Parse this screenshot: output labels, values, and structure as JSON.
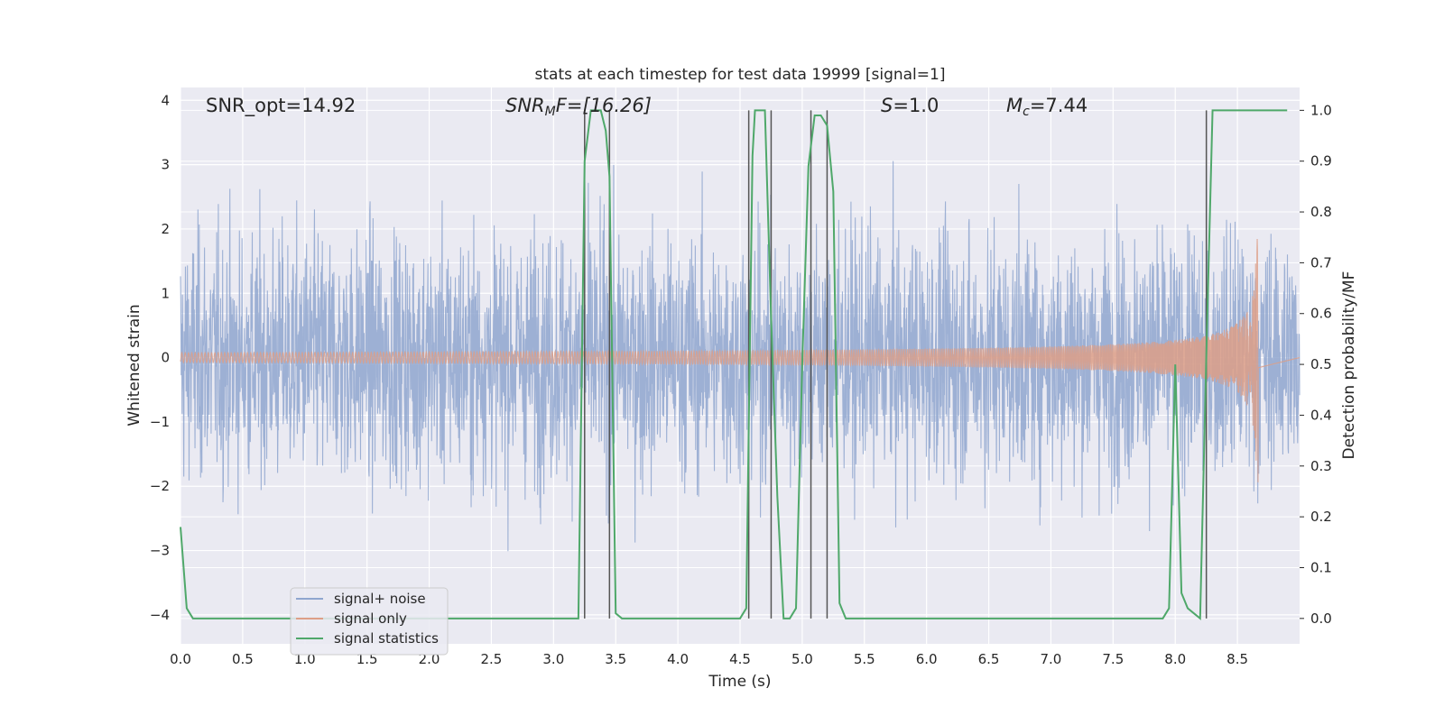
{
  "chart_data": {
    "type": "line",
    "title": "stats at each timestep for test data 19999 [signal=1]",
    "xlabel": "Time (s)",
    "ylabel": "Whitened strain",
    "ylabel_right": "Detection probability/MF",
    "xlim": [
      0.0,
      9.0
    ],
    "ylim": [
      -4.45,
      4.2
    ],
    "ylim_right": [
      -0.05,
      1.045
    ],
    "x_ticks": [
      "0.0",
      "0.5",
      "1.0",
      "1.5",
      "2.0",
      "2.5",
      "3.0",
      "3.5",
      "4.0",
      "4.5",
      "5.0",
      "5.5",
      "6.0",
      "6.5",
      "7.0",
      "7.5",
      "8.0",
      "8.5"
    ],
    "y_ticks": [
      "4",
      "3",
      "2",
      "1",
      "0",
      "−1",
      "−2",
      "−3",
      "−4"
    ],
    "y_ticks_right": [
      "1.0",
      "0.9",
      "0.8",
      "0.7",
      "0.6",
      "0.5",
      "0.4",
      "0.3",
      "0.2",
      "0.1",
      "0.0"
    ],
    "grid": true,
    "legend_position": "lower-left",
    "annotations": {
      "snr_opt": "SNR_opt=14.92",
      "snr_mf_prefix": "SNR",
      "snr_mf_sub": "M",
      "snr_mf_suffix": "F=[16.26]",
      "s_prefix": "S",
      "s_suffix": "=1.0",
      "mc_prefix": "M",
      "mc_sub": "c",
      "mc_suffix": "=7.44"
    },
    "series": [
      {
        "name": "signal+ noise",
        "color": "#8fa6cf",
        "kind": "noise",
        "t_range": [
          0.0,
          9.0
        ],
        "typical_amplitude": 1.7,
        "peak_amplitude": 3.6
      },
      {
        "name": "signal only",
        "color": "#dd9f87",
        "kind": "chirp",
        "t_start": 0.0,
        "t_merger": 8.67,
        "peak_amplitude": 1.95
      },
      {
        "name": "signal statistics",
        "color": "#4fa86a",
        "axis": "right",
        "x": [
          0.0,
          0.05,
          0.1,
          0.2,
          3.0,
          3.2,
          3.25,
          3.3,
          3.38,
          3.42,
          3.45,
          3.5,
          3.55,
          3.6,
          4.0,
          4.5,
          4.55,
          4.6,
          4.62,
          4.65,
          4.7,
          4.75,
          4.8,
          4.85,
          4.9,
          4.95,
          5.0,
          5.05,
          5.1,
          5.15,
          5.2,
          5.25,
          5.3,
          5.35,
          5.4,
          6.0,
          7.0,
          7.9,
          7.95,
          8.0,
          8.05,
          8.1,
          8.15,
          8.2,
          8.25,
          8.3,
          8.35,
          8.5,
          8.9
        ],
        "y": [
          0.18,
          0.02,
          0.0,
          0.0,
          0.0,
          0.0,
          0.9,
          1.0,
          1.0,
          0.96,
          0.87,
          0.01,
          0.0,
          0.0,
          0.0,
          0.0,
          0.02,
          0.91,
          1.0,
          1.0,
          1.0,
          0.59,
          0.24,
          0.0,
          0.0,
          0.02,
          0.5,
          0.89,
          0.99,
          0.99,
          0.97,
          0.84,
          0.03,
          0.0,
          0.0,
          0.0,
          0.0,
          0.0,
          0.02,
          0.5,
          0.05,
          0.02,
          0.01,
          0.0,
          0.52,
          1.0,
          1.0,
          1.0,
          1.0
        ]
      },
      {
        "name": "vertical markers",
        "color": "#555555",
        "x": [
          3.25,
          3.45,
          4.57,
          4.75,
          5.07,
          5.2,
          8.25
        ]
      }
    ],
    "legend": [
      {
        "label": "signal+ noise",
        "color": "#8fa6cf"
      },
      {
        "label": "signal only",
        "color": "#dd9f87"
      },
      {
        "label": "signal statistics",
        "color": "#4fa86a"
      }
    ],
    "colors": {
      "background": "#eaeaf2",
      "grid": "#ffffff"
    }
  }
}
